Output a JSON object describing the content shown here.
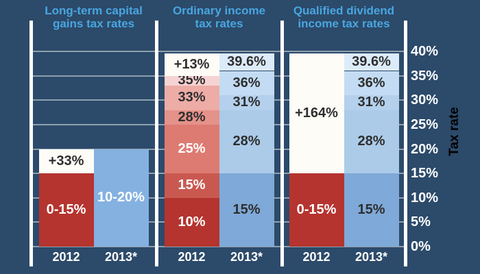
{
  "colors": {
    "background": "#2c4a6a",
    "title_blue": "#48a6e0",
    "gridline": "#8fa0af",
    "divider": "#ffffff",
    "dark_text": "#2e2e2e",
    "white_text": "#ffffff"
  },
  "chart_data": {
    "type": "bar",
    "subtype": "stacked-tax-bracket-comparison",
    "axis": {
      "title": "Tax rate",
      "min": 0,
      "max": 40,
      "grid": true,
      "ticks": [
        {
          "value": 40,
          "label": "40%"
        },
        {
          "value": 35,
          "label": "35%"
        },
        {
          "value": 30,
          "label": "30%"
        },
        {
          "value": 25,
          "label": "25%"
        },
        {
          "value": 20,
          "label": "20%"
        },
        {
          "value": 15,
          "label": "15%"
        },
        {
          "value": 10,
          "label": "10%"
        },
        {
          "value": 5,
          "label": "5%"
        },
        {
          "value": 0,
          "label": "0%"
        }
      ]
    },
    "panels": [
      {
        "title_lines": [
          "Long-term capital",
          "gains tax rates"
        ],
        "columns": [
          {
            "year": "2012",
            "segments": [
              {
                "from": 0,
                "to": 15,
                "label": "0-15%",
                "color": "#b5342f",
                "text": "#ffffff"
              },
              {
                "from": 15,
                "to": 20,
                "label": "+33%",
                "color": "#fdfcf7",
                "text": "#2e2e2e"
              }
            ]
          },
          {
            "year": "2013*",
            "segments": [
              {
                "from": 0,
                "to": 20,
                "label": "10-20%",
                "color": "#84b1e0",
                "text": "#ffffff"
              }
            ]
          }
        ]
      },
      {
        "title_lines": [
          "Ordinary income",
          "tax rates"
        ],
        "columns": [
          {
            "year": "2012",
            "segments": [
              {
                "from": 0,
                "to": 10,
                "label": "10%",
                "color": "#b5342f",
                "text": "#ffffff"
              },
              {
                "from": 10,
                "to": 15,
                "label": "15%",
                "color": "#c95950",
                "text": "#ffffff"
              },
              {
                "from": 15,
                "to": 25,
                "label": "25%",
                "color": "#dd7b72",
                "text": "#ffffff"
              },
              {
                "from": 25,
                "to": 28,
                "label": "28%",
                "color": "#e5928a",
                "text": "#2e2e2e"
              },
              {
                "from": 28,
                "to": 33,
                "label": "33%",
                "color": "#edaca6",
                "text": "#2e2e2e"
              },
              {
                "from": 33,
                "to": 35,
                "label": "35%",
                "color": "#f6d3d2",
                "text": "#2e2e2e"
              },
              {
                "from": 35,
                "to": 39.6,
                "label": "+13%",
                "color": "#fdfcf7",
                "text": "#2e2e2e"
              }
            ]
          },
          {
            "year": "2013*",
            "segments": [
              {
                "from": 0,
                "to": 15,
                "label": "15%",
                "color": "#7fa9d8",
                "text": "#2e2e2e"
              },
              {
                "from": 15,
                "to": 28,
                "label": "28%",
                "color": "#abcbe9",
                "text": "#2e2e2e"
              },
              {
                "from": 28,
                "to": 31,
                "label": "31%",
                "color": "#b4d0ec",
                "text": "#2e2e2e"
              },
              {
                "from": 31,
                "to": 36,
                "label": "36%",
                "color": "#c3dcf3",
                "text": "#2e2e2e"
              },
              {
                "from": 36,
                "to": 39.6,
                "label": "39.6%",
                "color": "#dcebf9",
                "text": "#2e2e2e"
              }
            ]
          }
        ]
      },
      {
        "title_lines": [
          "Qualified dividend",
          "income tax rates"
        ],
        "columns": [
          {
            "year": "2012",
            "segments": [
              {
                "from": 0,
                "to": 15,
                "label": "0-15%",
                "color": "#b5342f",
                "text": "#ffffff"
              },
              {
                "from": 15,
                "to": 39.6,
                "label": "+164%",
                "color": "#fdfcf7",
                "text": "#2e2e2e"
              }
            ]
          },
          {
            "year": "2013*",
            "segments": [
              {
                "from": 0,
                "to": 15,
                "label": "15%",
                "color": "#7fa9d8",
                "text": "#2e2e2e"
              },
              {
                "from": 15,
                "to": 28,
                "label": "28%",
                "color": "#abcbe9",
                "text": "#2e2e2e"
              },
              {
                "from": 28,
                "to": 31,
                "label": "31%",
                "color": "#b4d0ec",
                "text": "#2e2e2e"
              },
              {
                "from": 31,
                "to": 36,
                "label": "36%",
                "color": "#c3dcf3",
                "text": "#2e2e2e"
              },
              {
                "from": 36,
                "to": 39.6,
                "label": "39.6%",
                "color": "#dcebf9",
                "text": "#2e2e2e"
              }
            ]
          }
        ]
      }
    ]
  }
}
